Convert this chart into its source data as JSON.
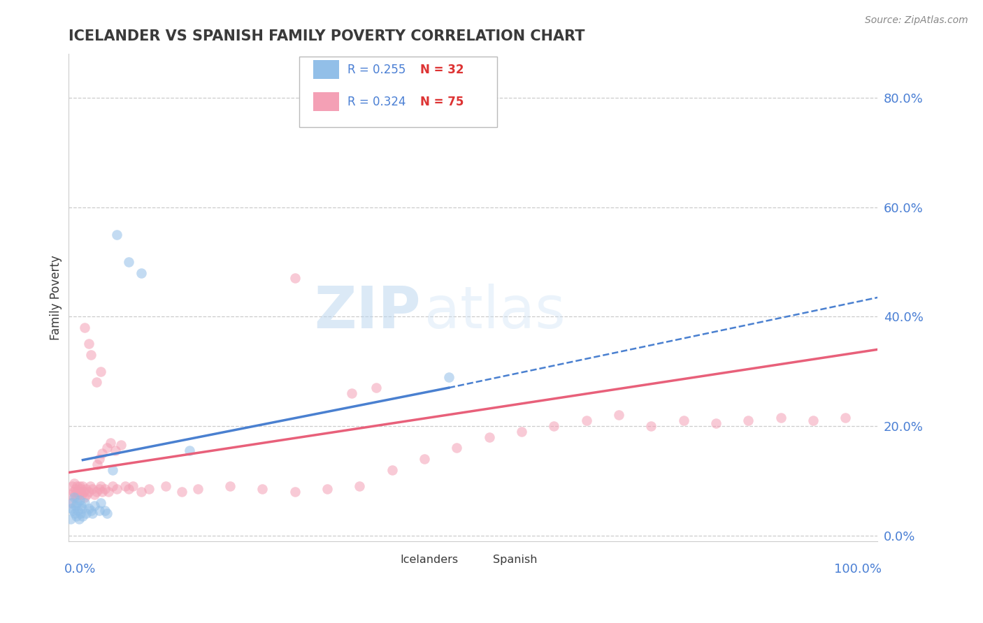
{
  "title": "ICELANDER VS SPANISH FAMILY POVERTY CORRELATION CHART",
  "source": "Source: ZipAtlas.com",
  "ylabel": "Family Poverty",
  "ytick_labels": [
    "0.0%",
    "20.0%",
    "40.0%",
    "60.0%",
    "80.0%"
  ],
  "ytick_values": [
    0.0,
    0.2,
    0.4,
    0.6,
    0.8
  ],
  "xlim": [
    0.0,
    1.0
  ],
  "ylim": [
    -0.01,
    0.88
  ],
  "legend_r_ice": "R = 0.255",
  "legend_n_ice": "N = 32",
  "legend_r_spa": "R = 0.324",
  "legend_n_spa": "N = 75",
  "legend_label_ice": "Icelanders",
  "legend_label_spa": "Spanish",
  "color_ice": "#92bfe8",
  "color_spa": "#f4a0b5",
  "color_trendline_ice": "#4a80d0",
  "color_trendline_spa": "#e8607a",
  "title_color": "#3a3a3a",
  "axis_label_color": "#4a7fd4",
  "source_color": "#888888",
  "background_color": "#ffffff",
  "watermark_zip": "ZIP",
  "watermark_atlas": "atlas",
  "ice_x": [
    0.003,
    0.004,
    0.005,
    0.006,
    0.007,
    0.008,
    0.009,
    0.01,
    0.011,
    0.012,
    0.013,
    0.014,
    0.015,
    0.016,
    0.017,
    0.018,
    0.02,
    0.022,
    0.025,
    0.028,
    0.03,
    0.032,
    0.038,
    0.04,
    0.045,
    0.048,
    0.055,
    0.06,
    0.075,
    0.09,
    0.15,
    0.47
  ],
  "ice_y": [
    0.03,
    0.05,
    0.06,
    0.045,
    0.07,
    0.04,
    0.055,
    0.035,
    0.06,
    0.045,
    0.03,
    0.065,
    0.04,
    0.055,
    0.05,
    0.035,
    0.06,
    0.04,
    0.05,
    0.045,
    0.04,
    0.055,
    0.045,
    0.06,
    0.045,
    0.04,
    0.12,
    0.55,
    0.5,
    0.48,
    0.155,
    0.29
  ],
  "spa_x": [
    0.003,
    0.004,
    0.005,
    0.006,
    0.007,
    0.008,
    0.009,
    0.01,
    0.011,
    0.012,
    0.013,
    0.014,
    0.015,
    0.016,
    0.017,
    0.018,
    0.019,
    0.02,
    0.022,
    0.023,
    0.025,
    0.027,
    0.03,
    0.032,
    0.035,
    0.038,
    0.04,
    0.042,
    0.045,
    0.05,
    0.055,
    0.06,
    0.07,
    0.075,
    0.08,
    0.09,
    0.1,
    0.12,
    0.14,
    0.16,
    0.2,
    0.24,
    0.28,
    0.32,
    0.36,
    0.4,
    0.44,
    0.48,
    0.52,
    0.56,
    0.6,
    0.64,
    0.68,
    0.72,
    0.76,
    0.8,
    0.84,
    0.88,
    0.92,
    0.96,
    0.036,
    0.038,
    0.042,
    0.048,
    0.052,
    0.058,
    0.065,
    0.035,
    0.04,
    0.028,
    0.025,
    0.02,
    0.35,
    0.38,
    0.28
  ],
  "spa_y": [
    0.06,
    0.075,
    0.09,
    0.08,
    0.095,
    0.075,
    0.085,
    0.07,
    0.09,
    0.08,
    0.075,
    0.09,
    0.08,
    0.085,
    0.075,
    0.09,
    0.08,
    0.07,
    0.085,
    0.075,
    0.08,
    0.09,
    0.085,
    0.075,
    0.08,
    0.085,
    0.09,
    0.08,
    0.085,
    0.08,
    0.09,
    0.085,
    0.09,
    0.085,
    0.09,
    0.08,
    0.085,
    0.09,
    0.08,
    0.085,
    0.09,
    0.085,
    0.08,
    0.085,
    0.09,
    0.12,
    0.14,
    0.16,
    0.18,
    0.19,
    0.2,
    0.21,
    0.22,
    0.2,
    0.21,
    0.205,
    0.21,
    0.215,
    0.21,
    0.215,
    0.13,
    0.14,
    0.15,
    0.16,
    0.17,
    0.155,
    0.165,
    0.28,
    0.3,
    0.33,
    0.35,
    0.38,
    0.26,
    0.27,
    0.47
  ],
  "ice_trend_x0": 0.018,
  "ice_trend_y0": 0.138,
  "ice_trend_x1": 0.47,
  "ice_trend_y1": 0.27,
  "ice_trend_dash_x1": 1.0,
  "ice_trend_dash_y1": 0.435,
  "spa_trend_x0": 0.0,
  "spa_trend_y0": 0.115,
  "spa_trend_x1": 1.0,
  "spa_trend_y1": 0.34
}
